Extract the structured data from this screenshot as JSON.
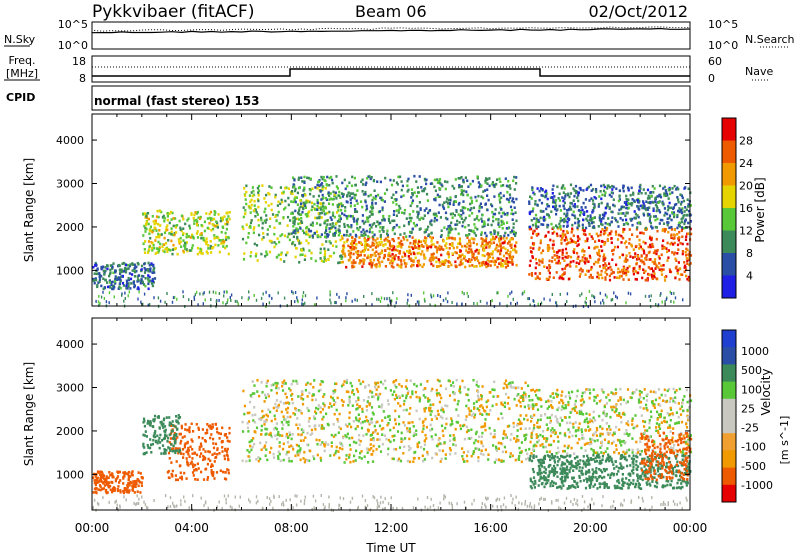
{
  "header": {
    "station": "Pykkvibaer (fitACF)",
    "beam": "Beam 06",
    "date": "02/Oct/2012"
  },
  "top_panels": {
    "nsky_label": "N.Sky",
    "nsky_ticks": [
      "10^5",
      "10^0"
    ],
    "nsearch_label": "N.Search",
    "nsearch_ticks": [
      "10^5",
      "10^0"
    ],
    "freq_label": "Freq.",
    "freq_unit": "[MHz]",
    "freq_ticks": [
      "18",
      "8"
    ],
    "nave_label": "Nave",
    "nave_ticks": [
      "60",
      "0"
    ],
    "cpid_label": "CPID",
    "cpid_text": "normal (fast stereo) 153"
  },
  "colors": {
    "power_scale": [
      "#1f1fe6",
      "#2a4ea6",
      "#3c8a5a",
      "#58c838",
      "#e6d400",
      "#f09a00",
      "#ee5a00",
      "#e60000"
    ],
    "velocity_scale": [
      "#e60000",
      "#ee5a00",
      "#f09a00",
      "#f0a030",
      "#c8c8c0",
      "#c8c8c0",
      "#58c838",
      "#3c8a5a",
      "#2a4ea6",
      "#1f3fd0"
    ],
    "ground_scatter": "#b4b4aa"
  },
  "chart_data": [
    {
      "type": "heatmap",
      "title": "Power",
      "ylabel": "Slant Range [km]",
      "xlabel": "Time UT",
      "x_range_hours": [
        0,
        24
      ],
      "ylim": [
        180,
        4600
      ],
      "yticks": [
        "1000",
        "2000",
        "3000",
        "4000"
      ],
      "xticks": [
        "00:00",
        "04:00",
        "08:00",
        "12:00",
        "16:00",
        "20:00",
        "00:00"
      ],
      "colorbar_label": "Power [dB]",
      "colorbar_ticks": [
        "4",
        "8",
        "12",
        "16",
        "20",
        "24",
        "28"
      ],
      "scatter_bands": [
        {
          "t_start": 0.0,
          "t_end": 2.5,
          "range_low": 600,
          "range_high": 1200,
          "power": 10
        },
        {
          "t_start": 2.0,
          "t_end": 5.5,
          "range_low": 1400,
          "range_high": 2400,
          "power": 18
        },
        {
          "t_start": 6.0,
          "t_end": 10.0,
          "range_low": 1200,
          "range_high": 3000,
          "power": 16
        },
        {
          "t_start": 10.0,
          "t_end": 17.0,
          "range_low": 1100,
          "range_high": 1800,
          "power": 26
        },
        {
          "t_start": 8.0,
          "t_end": 17.0,
          "range_low": 1800,
          "range_high": 3200,
          "power": 12
        },
        {
          "t_start": 17.5,
          "t_end": 24.0,
          "range_low": 800,
          "range_high": 2000,
          "power": 28
        },
        {
          "t_start": 17.5,
          "t_end": 24.0,
          "range_low": 2000,
          "range_high": 3000,
          "power": 10
        }
      ]
    },
    {
      "type": "heatmap",
      "title": "Velocity",
      "ylabel": "Slant Range [km]",
      "xlabel": "Time UT",
      "x_range_hours": [
        0,
        24
      ],
      "ylim": [
        180,
        4600
      ],
      "yticks": [
        "1000",
        "2000",
        "3000",
        "4000"
      ],
      "xticks": [
        "00:00",
        "04:00",
        "08:00",
        "12:00",
        "16:00",
        "20:00",
        "00:00"
      ],
      "colorbar_label": "Velocity",
      "colorbar_unit": "[m s^-1]",
      "colorbar_ticks": [
        "1000",
        "500",
        "100",
        "25",
        "-25",
        "-100",
        "-500",
        "-1000"
      ],
      "scatter_bands": [
        {
          "t_start": 0.0,
          "t_end": 2.0,
          "range_low": 600,
          "range_high": 1100,
          "velocity": -300
        },
        {
          "t_start": 3.0,
          "t_end": 5.5,
          "range_low": 900,
          "range_high": 2200,
          "velocity": -250
        },
        {
          "t_start": 2.0,
          "t_end": 3.5,
          "range_low": 1500,
          "range_high": 2400,
          "velocity": 400
        },
        {
          "t_start": 6.0,
          "t_end": 17.5,
          "range_low": 1300,
          "range_high": 3200,
          "velocity": 0
        },
        {
          "t_start": 17.5,
          "t_end": 24.0,
          "range_low": 700,
          "range_high": 1500,
          "velocity": 300
        },
        {
          "t_start": 17.5,
          "t_end": 24.0,
          "range_low": 1500,
          "range_high": 3000,
          "velocity": 0
        },
        {
          "t_start": 22.0,
          "t_end": 24.0,
          "range_low": 900,
          "range_high": 2000,
          "velocity": -400
        }
      ]
    }
  ]
}
